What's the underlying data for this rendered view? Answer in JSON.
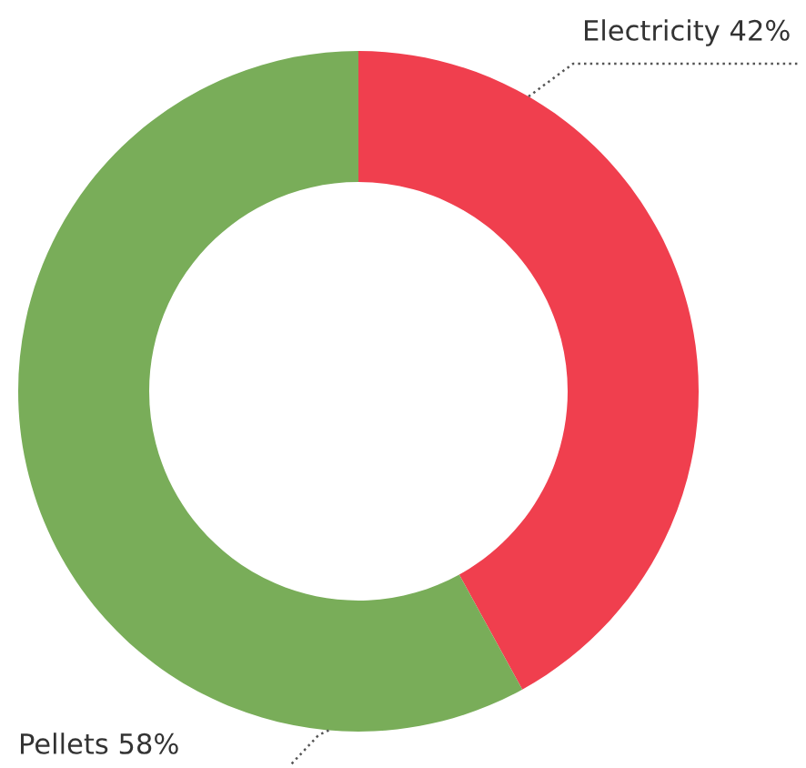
{
  "chart_data": {
    "type": "donut",
    "categories": [
      "Electricity",
      "Pellets"
    ],
    "values": [
      42,
      58
    ],
    "value_labels": [
      "42%",
      "58%"
    ],
    "colors": [
      "#f03f4e",
      "#79ad59"
    ]
  }
}
